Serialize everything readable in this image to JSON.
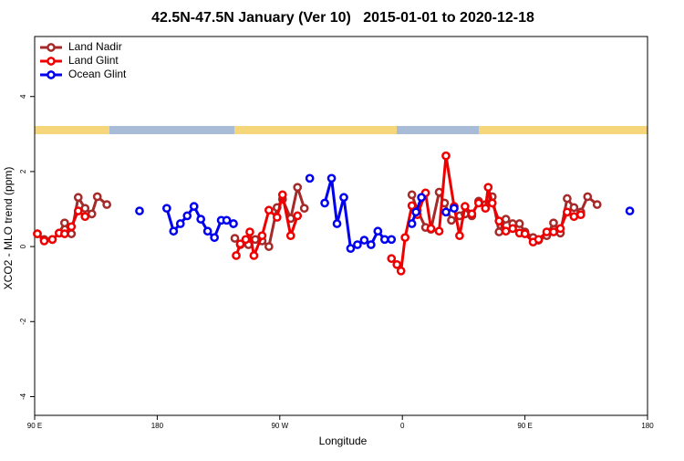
{
  "chart_data": {
    "type": "line",
    "title": "42.5N-47.5N January (Ver 10)   2015-01-01 to 2020-12-18",
    "xlabel": "Longitude",
    "ylabel": "XCO2 - MLO trend (ppm)",
    "xlim": [
      -270,
      180
    ],
    "xticks": [
      {
        "value": -270,
        "label": "90 E"
      },
      {
        "value": -180,
        "label": "180"
      },
      {
        "value": -90,
        "label": "90 W"
      },
      0,
      {
        "value": 90,
        "label": "90 E"
      },
      180
    ],
    "ylim": [
      -4.5,
      5.6
    ],
    "yticks": [
      -4,
      -2,
      0,
      2,
      4
    ],
    "legend": "top-left",
    "series": [
      {
        "name": "Land Nadir",
        "color": "#a52a2a",
        "x": [
          -268,
          -263,
          -257,
          -252,
          -248,
          -243,
          -238,
          -233,
          -228,
          -224,
          -217,
          null,
          -123,
          -119,
          -113,
          -108,
          -103,
          -98,
          -92,
          -88,
          -82,
          -77,
          -72,
          null,
          7,
          11,
          17,
          21,
          27,
          31,
          36,
          42,
          46,
          51,
          56,
          61,
          66,
          71,
          76,
          81,
          86,
          90,
          96,
          100,
          106,
          111,
          116,
          121,
          126,
          131,
          136,
          143
        ],
        "values": [
          0.34,
          0.19,
          0.19,
          0.36,
          0.63,
          0.34,
          1.31,
          1.02,
          0.87,
          1.33,
          1.12,
          null,
          0.22,
          0.05,
          0.05,
          0.19,
          0.15,
          0,
          1.04,
          1.26,
          0.75,
          1.58,
          1.02,
          null,
          1.38,
          0.97,
          0.51,
          0.46,
          1.45,
          1.16,
          0.7,
          0.82,
          0.87,
          0.82,
          1.21,
          1.12,
          1.33,
          0.39,
          0.73,
          0.61,
          0.61,
          0.39,
          0.24,
          0.17,
          0.29,
          0.63,
          0.36,
          1.28,
          1.04,
          0.92,
          1.33,
          1.12
        ]
      },
      {
        "name": "Land Glint",
        "color": "#ee0000",
        "x": [
          -268,
          -263,
          -257,
          -252,
          -248,
          -243,
          -238,
          -233,
          null,
          -122,
          -119,
          -115,
          -112,
          -109,
          -103,
          -98,
          -92,
          -88,
          -82,
          -77,
          null,
          -8,
          -4,
          -1,
          2,
          7,
          11,
          17,
          21,
          27,
          32,
          38,
          42,
          46,
          51,
          56,
          61,
          63,
          66,
          71,
          76,
          81,
          86,
          90,
          96,
          100,
          106,
          111,
          116,
          121,
          126,
          131
        ],
        "values": [
          0.34,
          0.15,
          0.19,
          0.36,
          0.34,
          0.53,
          0.95,
          0.8,
          null,
          -0.24,
          0.07,
          0.19,
          0.39,
          -0.24,
          0.29,
          0.97,
          0.78,
          1.38,
          0.29,
          0.82,
          null,
          -0.32,
          -0.48,
          -0.65,
          0.24,
          1.09,
          0.85,
          1.43,
          0.48,
          0.41,
          2.42,
          1.07,
          0.29,
          1.07,
          0.87,
          1.16,
          1.02,
          1.58,
          1.16,
          0.68,
          0.41,
          0.48,
          0.36,
          0.34,
          0.12,
          0.19,
          0.39,
          0.39,
          0.48,
          0.92,
          0.8,
          0.85
        ]
      },
      {
        "name": "Ocean Glint",
        "color": "#0000ee",
        "x": [
          -193,
          null,
          -173,
          -168,
          -163,
          -158,
          -153,
          -148,
          -143,
          -138,
          -133,
          -129,
          -124,
          null,
          -68,
          null,
          -57,
          -52,
          -48,
          -43,
          -38,
          -33,
          -28,
          -23,
          -18,
          -13,
          -8,
          null,
          7,
          10,
          14,
          null,
          32,
          38,
          null,
          167
        ],
        "values": [
          0.95,
          null,
          1.02,
          0.41,
          0.61,
          0.82,
          1.07,
          0.73,
          0.41,
          0.24,
          0.7,
          0.7,
          0.61,
          null,
          1.82,
          null,
          1.16,
          1.82,
          0.61,
          1.31,
          -0.05,
          0.05,
          0.17,
          0.05,
          0.41,
          0.19,
          0.19,
          null,
          0.61,
          0.92,
          1.31,
          null,
          0.92,
          1.02,
          null,
          0.95
        ]
      }
    ]
  }
}
